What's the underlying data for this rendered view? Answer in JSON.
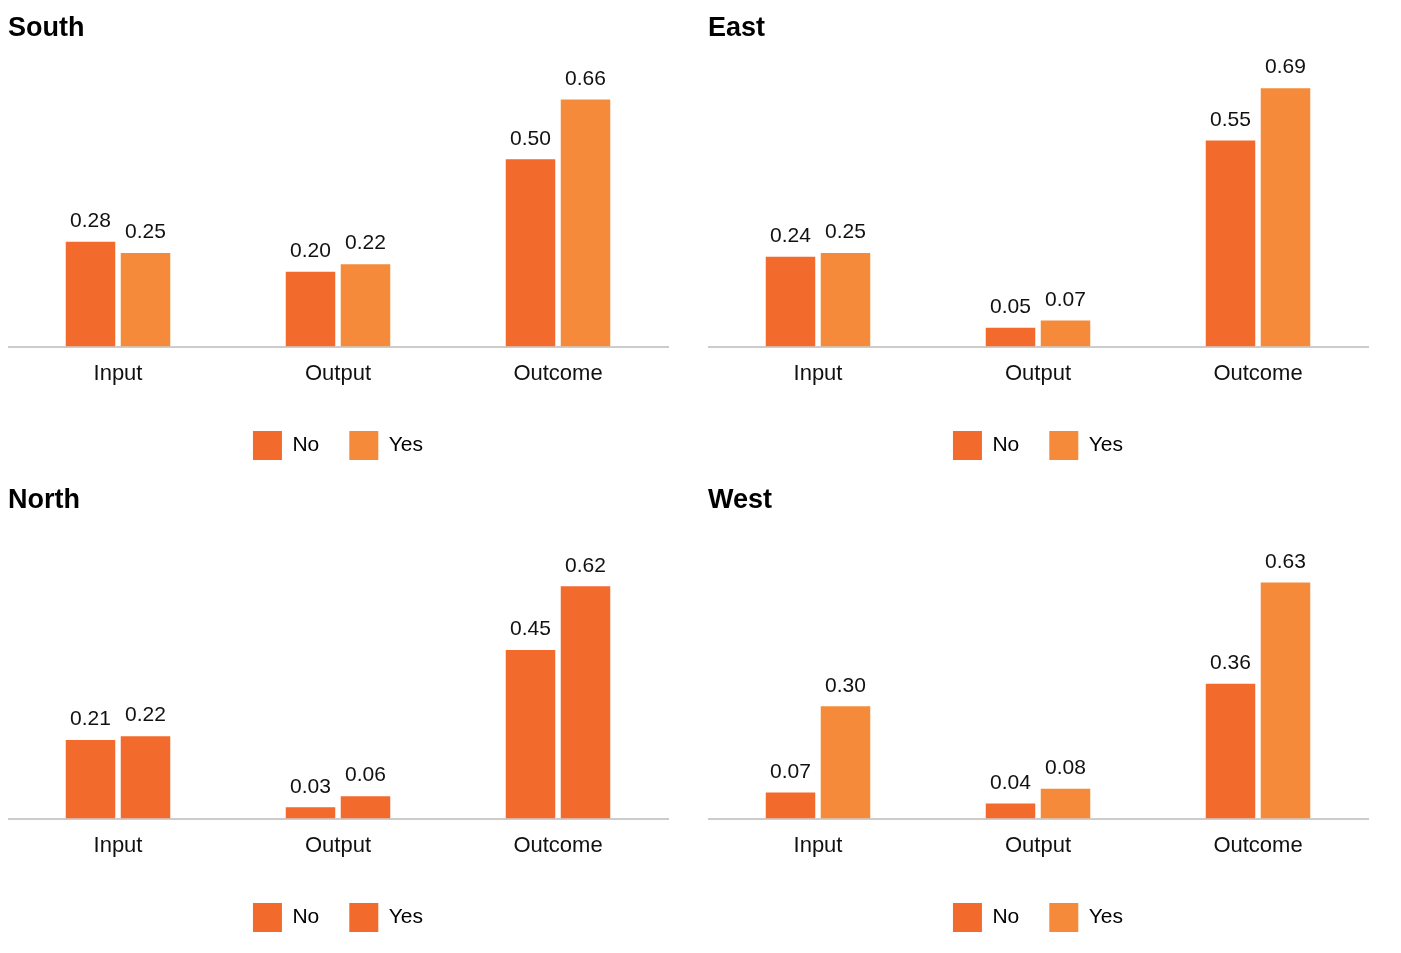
{
  "chart_data": [
    {
      "type": "bar",
      "title": "South",
      "categories": [
        "Input",
        "Output",
        "Outcome"
      ],
      "series": [
        {
          "name": "No",
          "color": "#f26a2c",
          "values": [
            0.28,
            0.2,
            0.5
          ],
          "value_labels": [
            "0.28",
            "0.20",
            "0.50"
          ]
        },
        {
          "name": "Yes",
          "color": "#f58b3a",
          "values": [
            0.25,
            0.22,
            0.66
          ],
          "value_labels": [
            "0.25",
            "0.22",
            "0.66"
          ]
        }
      ],
      "data_labels": true,
      "grid": false,
      "legend": "bottom"
    },
    {
      "type": "bar",
      "title": "East",
      "categories": [
        "Input",
        "Output",
        "Outcome"
      ],
      "series": [
        {
          "name": "No",
          "color": "#f26a2c",
          "values": [
            0.24,
            0.05,
            0.55
          ],
          "value_labels": [
            "0.24",
            "0.05",
            "0.55"
          ]
        },
        {
          "name": "Yes",
          "color": "#f58b3a",
          "values": [
            0.25,
            0.07,
            0.69
          ],
          "value_labels": [
            "0.25",
            "0.07",
            "0.69"
          ]
        }
      ],
      "data_labels": true,
      "grid": false,
      "legend": "bottom"
    },
    {
      "type": "bar",
      "title": "North",
      "categories": [
        "Input",
        "Output",
        "Outcome"
      ],
      "series": [
        {
          "name": "No",
          "color": "#f26a2c",
          "values": [
            0.21,
            0.03,
            0.45
          ],
          "value_labels": [
            "0.21",
            "0.03",
            "0.45"
          ]
        },
        {
          "name": "Yes",
          "color": "#f26a2c",
          "values": [
            0.22,
            0.06,
            0.62
          ],
          "value_labels": [
            "0.22",
            "0.06",
            "0.62"
          ]
        }
      ],
      "data_labels": true,
      "grid": false,
      "legend": "bottom"
    },
    {
      "type": "bar",
      "title": "West",
      "categories": [
        "Input",
        "Output",
        "Outcome"
      ],
      "series": [
        {
          "name": "No",
          "color": "#f26a2c",
          "values": [
            0.07,
            0.04,
            0.36
          ],
          "value_labels": [
            "0.07",
            "0.04",
            "0.36"
          ]
        },
        {
          "name": "Yes",
          "color": "#f58b3a",
          "values": [
            0.3,
            0.08,
            0.63
          ],
          "value_labels": [
            "0.30",
            "0.08",
            "0.63"
          ]
        }
      ],
      "data_labels": true,
      "grid": false,
      "legend": "bottom"
    }
  ]
}
